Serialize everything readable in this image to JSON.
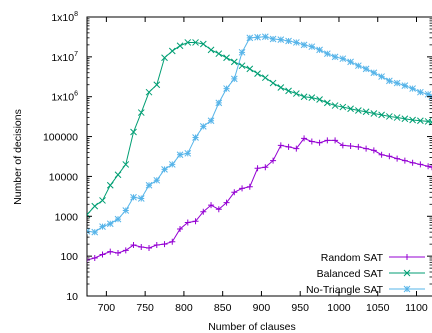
{
  "chart_data": {
    "type": "line",
    "xlabel": "Number of clauses",
    "ylabel": "Number of decisions",
    "xlim": [
      675,
      1120
    ],
    "ylim": [
      10,
      100000000
    ],
    "yscale": "log",
    "x_ticks": [
      700,
      750,
      800,
      850,
      900,
      950,
      1000,
      1050,
      1100
    ],
    "x_tick_labels": [
      "700",
      "750",
      "800",
      "850",
      "900",
      "950",
      "1000",
      "1050",
      "1100"
    ],
    "y_ticks": [
      10,
      100,
      1000,
      10000,
      100000,
      1000000,
      10000000,
      100000000
    ],
    "y_tick_labels": [
      {
        "base": "10",
        "exp": ""
      },
      {
        "base": "100",
        "exp": ""
      },
      {
        "base": "1000",
        "exp": ""
      },
      {
        "base": "10000",
        "exp": ""
      },
      {
        "base": "100000",
        "exp": ""
      },
      {
        "base": "1x10",
        "exp": "6"
      },
      {
        "base": "1x10",
        "exp": "7"
      },
      {
        "base": "1x10",
        "exp": "8"
      }
    ],
    "grid": false,
    "legend_position": "bottom-right",
    "series": [
      {
        "name": "Random SAT",
        "color": "#9400d3",
        "marker": "plus",
        "points": [
          [
            675,
            80
          ],
          [
            685,
            90
          ],
          [
            695,
            110
          ],
          [
            705,
            130
          ],
          [
            715,
            120
          ],
          [
            725,
            140
          ],
          [
            735,
            190
          ],
          [
            745,
            170
          ],
          [
            755,
            160
          ],
          [
            765,
            190
          ],
          [
            775,
            200
          ],
          [
            785,
            230
          ],
          [
            795,
            480
          ],
          [
            805,
            700
          ],
          [
            815,
            750
          ],
          [
            825,
            1300
          ],
          [
            835,
            1900
          ],
          [
            845,
            1500
          ],
          [
            855,
            2200
          ],
          [
            865,
            4000
          ],
          [
            875,
            5000
          ],
          [
            885,
            5500
          ],
          [
            895,
            16000
          ],
          [
            905,
            17000
          ],
          [
            915,
            25000
          ],
          [
            925,
            60000
          ],
          [
            935,
            55000
          ],
          [
            945,
            50000
          ],
          [
            955,
            90000
          ],
          [
            965,
            75000
          ],
          [
            975,
            70000
          ],
          [
            985,
            80000
          ],
          [
            995,
            80000
          ],
          [
            1005,
            60000
          ],
          [
            1015,
            58000
          ],
          [
            1025,
            55000
          ],
          [
            1035,
            50000
          ],
          [
            1045,
            45000
          ],
          [
            1055,
            35000
          ],
          [
            1065,
            32000
          ],
          [
            1075,
            28000
          ],
          [
            1085,
            25000
          ],
          [
            1095,
            22000
          ],
          [
            1105,
            20000
          ],
          [
            1115,
            18000
          ],
          [
            1120,
            17000
          ]
        ]
      },
      {
        "name": "Balanced SAT",
        "color": "#009e73",
        "marker": "x",
        "points": [
          [
            675,
            1100
          ],
          [
            685,
            1800
          ],
          [
            695,
            2500
          ],
          [
            705,
            6000
          ],
          [
            715,
            11000
          ],
          [
            725,
            20000
          ],
          [
            735,
            130000
          ],
          [
            745,
            400000
          ],
          [
            755,
            1300000
          ],
          [
            765,
            2000000
          ],
          [
            775,
            9500000
          ],
          [
            785,
            14000000
          ],
          [
            795,
            19000000
          ],
          [
            805,
            23000000
          ],
          [
            815,
            23000000
          ],
          [
            825,
            21000000
          ],
          [
            835,
            15000000
          ],
          [
            845,
            12000000
          ],
          [
            855,
            9500000
          ],
          [
            865,
            7500000
          ],
          [
            875,
            6000000
          ],
          [
            885,
            5000000
          ],
          [
            895,
            3800000
          ],
          [
            905,
            3000000
          ],
          [
            915,
            2200000
          ],
          [
            925,
            1700000
          ],
          [
            935,
            1400000
          ],
          [
            945,
            1200000
          ],
          [
            955,
            1000000
          ],
          [
            965,
            950000
          ],
          [
            975,
            850000
          ],
          [
            985,
            700000
          ],
          [
            995,
            600000
          ],
          [
            1005,
            550000
          ],
          [
            1015,
            500000
          ],
          [
            1025,
            450000
          ],
          [
            1035,
            420000
          ],
          [
            1045,
            380000
          ],
          [
            1055,
            350000
          ],
          [
            1065,
            320000
          ],
          [
            1075,
            300000
          ],
          [
            1085,
            280000
          ],
          [
            1095,
            260000
          ],
          [
            1105,
            250000
          ],
          [
            1115,
            240000
          ],
          [
            1120,
            230000
          ]
        ]
      },
      {
        "name": "No-Triangle SAT",
        "color": "#56b4e9",
        "marker": "star",
        "points": [
          [
            675,
            420
          ],
          [
            685,
            400
          ],
          [
            695,
            550
          ],
          [
            705,
            650
          ],
          [
            715,
            850
          ],
          [
            725,
            1400
          ],
          [
            735,
            3000
          ],
          [
            745,
            2800
          ],
          [
            755,
            6000
          ],
          [
            765,
            8000
          ],
          [
            775,
            15000
          ],
          [
            785,
            20000
          ],
          [
            795,
            35000
          ],
          [
            805,
            38000
          ],
          [
            815,
            95000
          ],
          [
            825,
            180000
          ],
          [
            835,
            250000
          ],
          [
            845,
            700000
          ],
          [
            855,
            1600000
          ],
          [
            865,
            2800000
          ],
          [
            875,
            13000000
          ],
          [
            885,
            30000000
          ],
          [
            895,
            31000000
          ],
          [
            905,
            32000000
          ],
          [
            915,
            28000000
          ],
          [
            925,
            27000000
          ],
          [
            935,
            25000000
          ],
          [
            945,
            23000000
          ],
          [
            955,
            20000000
          ],
          [
            965,
            18000000
          ],
          [
            975,
            15000000
          ],
          [
            985,
            12000000
          ],
          [
            995,
            10000000
          ],
          [
            1005,
            9000000
          ],
          [
            1015,
            7500000
          ],
          [
            1025,
            6000000
          ],
          [
            1035,
            5000000
          ],
          [
            1045,
            4000000
          ],
          [
            1055,
            3200000
          ],
          [
            1065,
            2500000
          ],
          [
            1075,
            2200000
          ],
          [
            1085,
            1900000
          ],
          [
            1095,
            1600000
          ],
          [
            1105,
            1300000
          ],
          [
            1115,
            1150000
          ],
          [
            1120,
            1000000
          ]
        ]
      }
    ]
  }
}
